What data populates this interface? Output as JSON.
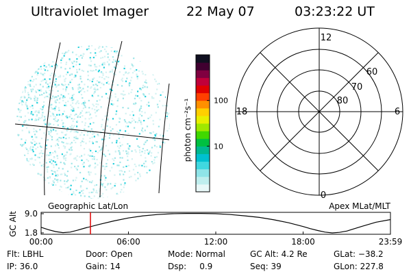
{
  "header": {
    "title": "Ultraviolet Imager",
    "date": "22 May 07",
    "time": "03:23:22 UT"
  },
  "image_labels": {
    "geographic": "Geographic Lat/Lon",
    "apex": "Apex MLat/MLT"
  },
  "colorbar": {
    "label": "photon cm⁻²s⁻¹",
    "ticks": [
      {
        "value": 100,
        "label": "100"
      },
      {
        "value": 10,
        "label": "10"
      }
    ],
    "colors": [
      "#e8f8f8",
      "#bfeeee",
      "#8fe4e8",
      "#40d8e0",
      "#00c0d0",
      "#00b890",
      "#00c040",
      "#40d800",
      "#a0e800",
      "#e8f000",
      "#ffd000",
      "#ff9000",
      "#ff4000",
      "#e00000",
      "#c0003a",
      "#800040",
      "#400030",
      "#101020"
    ]
  },
  "polar": {
    "mlt_labels": [
      {
        "text": "12",
        "pos": "top"
      },
      {
        "text": "18",
        "pos": "left"
      },
      {
        "text": "6",
        "pos": "right"
      },
      {
        "text": "0",
        "pos": "bottom"
      }
    ],
    "lat_labels": [
      "80",
      "70",
      "60"
    ]
  },
  "chart_data": {
    "type": "line",
    "ylabel": "GC Alt",
    "yticks": [
      "9.0",
      "1.8"
    ],
    "ylim": [
      1.8,
      9.0
    ],
    "xticks": [
      "00:00",
      "06:00",
      "12:00",
      "18:00",
      "23:59"
    ],
    "xlim": [
      0,
      24
    ],
    "current_time_hours": 3.39,
    "series": [
      {
        "x": [
          0,
          0.5,
          1.0,
          1.5,
          2.0,
          2.5,
          3.0,
          4.0,
          5.0,
          6.0,
          7.0,
          8.0,
          9.0,
          10.0,
          11.0,
          12.0,
          13.0,
          14.0,
          15.0,
          16.0,
          17.0,
          17.5,
          18.0,
          18.5,
          19.0,
          19.5,
          20.0,
          20.5,
          21.0,
          22.0,
          23.0,
          23.98
        ],
        "y": [
          3.9,
          3.0,
          2.3,
          1.9,
          2.1,
          2.8,
          3.6,
          5.0,
          6.3,
          7.4,
          8.2,
          8.7,
          9.0,
          9.1,
          9.1,
          9.0,
          8.7,
          8.2,
          7.6,
          6.7,
          5.6,
          4.9,
          4.2,
          3.4,
          2.7,
          2.1,
          1.8,
          2.0,
          2.5,
          4.2,
          5.8,
          6.8
        ]
      }
    ]
  },
  "info": {
    "flt": "Flt: LBHL",
    "ip": "IP: 36.0",
    "door": "Door: Open",
    "gain": "Gain: 14",
    "mode": "Mode: Normal",
    "dsp": "Dsp:     0.9",
    "gcalt": "GC Alt: 4.2 Re",
    "seq": "Seq: 39",
    "glat": "GLat: −38.2",
    "glon": "GLon: 227.8"
  }
}
